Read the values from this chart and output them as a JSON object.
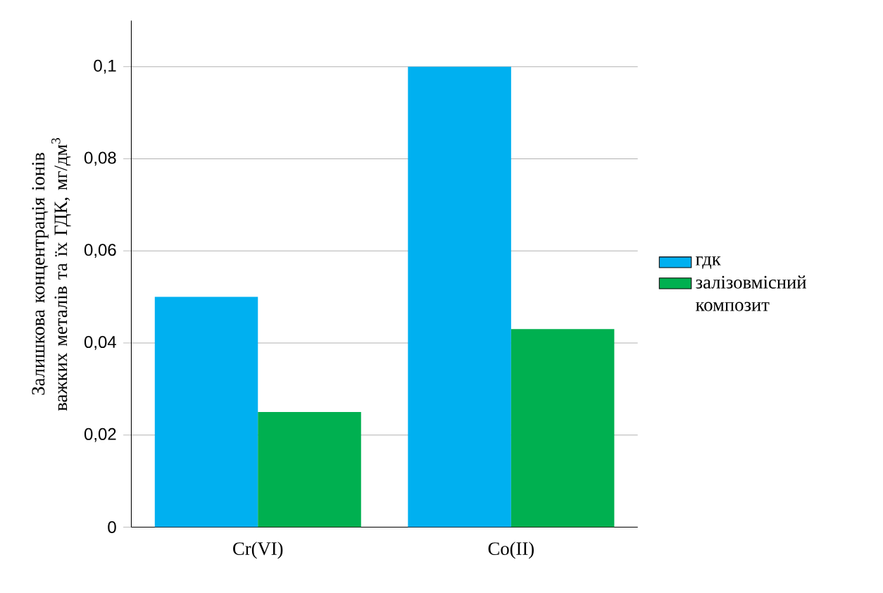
{
  "chart_data": {
    "type": "bar",
    "ylabel": "Залишкова концентрація іонів важких металів та їх ГДК, мг/дм$^{3}$",
    "categories": [
      "Cr(VI)",
      "Co(II)"
    ],
    "series": [
      {
        "name": "гдк",
        "color": "#00b0f0",
        "values": [
          0.05,
          0.1
        ]
      },
      {
        "name": "залізовмісний композит",
        "color": "#00b050",
        "values": [
          0.025,
          0.043
        ]
      }
    ],
    "ylim": [
      0,
      0.11
    ],
    "yticks": [
      0,
      {
        "value": 0.02,
        "label": "0,02"
      },
      {
        "value": 0.04,
        "label": "0,04"
      },
      {
        "value": 0.06,
        "label": "0,06"
      },
      {
        "value": 0.08,
        "label": "0,08"
      },
      {
        "value": 0.1,
        "label": "0,1"
      }
    ],
    "grid": "y",
    "legend": "right"
  }
}
